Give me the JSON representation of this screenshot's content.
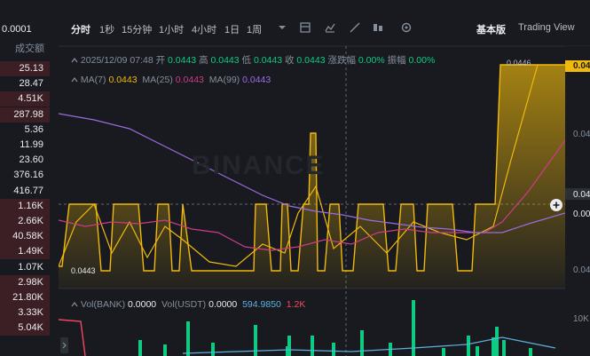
{
  "left_list": {
    "header_price": "0.0001",
    "header_col": "成交额",
    "rows": [
      {
        "value": "25.13",
        "tone": "red"
      },
      {
        "value": "28.47",
        "tone": "grn"
      },
      {
        "value": "4.51K",
        "tone": "red"
      },
      {
        "value": "287.98",
        "tone": "red"
      },
      {
        "value": "5.36",
        "tone": "grn"
      },
      {
        "value": "11.99",
        "tone": "grn"
      },
      {
        "value": "23.60",
        "tone": "grn"
      },
      {
        "value": "376.16",
        "tone": "grn"
      },
      {
        "value": "416.77",
        "tone": "grn"
      },
      {
        "value": "1.16K",
        "tone": "red"
      },
      {
        "value": "2.66K",
        "tone": "red"
      },
      {
        "value": "40.58K",
        "tone": "red"
      },
      {
        "value": "1.49K",
        "tone": "red"
      },
      {
        "value": "1.07K",
        "tone": "grn"
      },
      {
        "value": "2.98K",
        "tone": "red"
      },
      {
        "value": "21.80K",
        "tone": "red"
      },
      {
        "value": "3.33K",
        "tone": "red"
      },
      {
        "value": "5.04K",
        "tone": "red"
      }
    ]
  },
  "toolbar": {
    "intervals": [
      "分时",
      "1秒",
      "15分钟",
      "1小时",
      "4小时",
      "1日",
      "1周"
    ],
    "basic_label": "基本版",
    "tradingview_label": "Trading View"
  },
  "info": {
    "datetime": "2025/12/09 07:48",
    "open_label": "开",
    "open": "0.0443",
    "high_label": "高",
    "high": "0.0443",
    "low_label": "低",
    "low": "0.0443",
    "close_label": "收",
    "close": "0.0443",
    "change_label": "涨跌幅",
    "change": "0.00%",
    "amp_label": "振幅",
    "amp": "0.00%"
  },
  "ma": {
    "ma7_label": "MA(7)",
    "ma7": "0.0443",
    "ma25_label": "MA(25)",
    "ma25": "0.0443",
    "ma99_label": "MA(99)",
    "ma99": "0.0443"
  },
  "vol": {
    "bank_label": "Vol(BANK)",
    "bank": "0.0000",
    "usdt_label": "Vol(USDT)",
    "usdt": "0.0000",
    "val1": "594.9850",
    "val2": "1.2K"
  },
  "watermark": "BINANCE",
  "price_tags": {
    "high_marker": "0.0446",
    "low_marker": "0.0443",
    "right_top": "0.04",
    "right_mid1": "0.04",
    "right_mid2": "0.04",
    "right_mid3": "0.00",
    "right_low": "0.04",
    "vol_axis": "10K"
  },
  "colors": {
    "up": "#0ecb81",
    "down": "#f6465d",
    "price_line": "#f0b90b",
    "ma25": "#cc3b8a",
    "ma99": "#9b6ce0"
  }
}
